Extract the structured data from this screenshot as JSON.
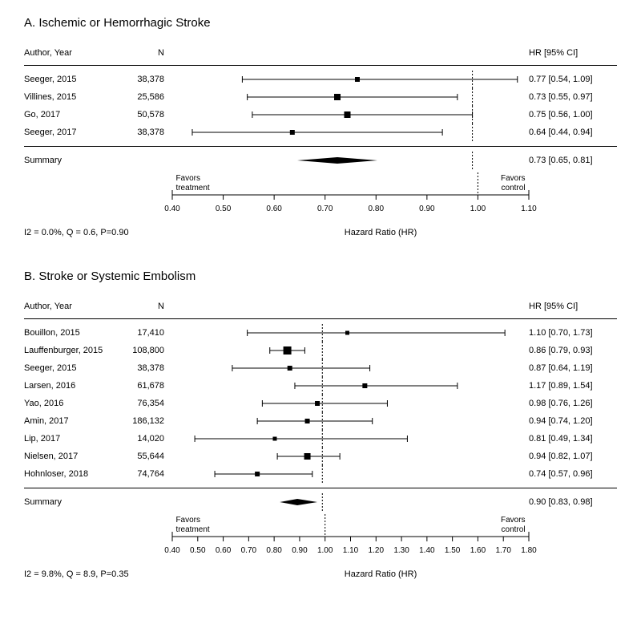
{
  "panels": [
    {
      "title": "A. Ischemic or Hemorrhagic Stroke",
      "header_author": "Author, Year",
      "header_n": "N",
      "header_hr": "HR [95% CI]",
      "axis_min": 0.4,
      "axis_max": 1.1,
      "ref_line": 1.0,
      "ticks": [
        0.4,
        0.5,
        0.6,
        0.7,
        0.8,
        0.9,
        1.0,
        1.1
      ],
      "favors_treatment": "Favors\ntreatment",
      "favors_control": "Favors\ncontrol",
      "axis_label": "Hazard Ratio (HR)",
      "het": "I2 = 0.0%, Q = 0.6, P=0.90",
      "studies": [
        {
          "author": "Seeger, 2015",
          "n": "38,378",
          "hr": 0.77,
          "lo": 0.54,
          "hi": 1.09,
          "hr_text": "0.77 [0.54, 1.09]",
          "weight": 6
        },
        {
          "author": "Villines, 2015",
          "n": "25,586",
          "hr": 0.73,
          "lo": 0.55,
          "hi": 0.97,
          "hr_text": "0.73 [0.55, 0.97]",
          "weight": 8
        },
        {
          "author": "Go, 2017",
          "n": "50,578",
          "hr": 0.75,
          "lo": 0.56,
          "hi": 1.0,
          "hr_text": "0.75 [0.56, 1.00]",
          "weight": 8
        },
        {
          "author": "Seeger, 2017",
          "n": "38,378",
          "hr": 0.64,
          "lo": 0.44,
          "hi": 0.94,
          "hr_text": "0.64 [0.44, 0.94]",
          "weight": 6
        }
      ],
      "summary": {
        "label": "Summary",
        "hr": 0.73,
        "lo": 0.65,
        "hi": 0.81,
        "hr_text": "0.73 [0.65, 0.81]"
      }
    },
    {
      "title": "B. Stroke or Systemic Embolism",
      "header_author": "Author, Year",
      "header_n": "N",
      "header_hr": "HR [95% CI]",
      "axis_min": 0.4,
      "axis_max": 1.8,
      "ref_line": 1.0,
      "ticks": [
        0.4,
        0.5,
        0.6,
        0.7,
        0.8,
        0.9,
        1.0,
        1.1,
        1.2,
        1.3,
        1.4,
        1.5,
        1.6,
        1.7,
        1.8
      ],
      "favors_treatment": "Favors\ntreatment",
      "favors_control": "Favors\ncontrol",
      "axis_label": "Hazard Ratio (HR)",
      "het": "I2 = 9.8%, Q = 8.9, P=0.35",
      "studies": [
        {
          "author": "Bouillon, 2015",
          "n": "17,410",
          "hr": 1.1,
          "lo": 0.7,
          "hi": 1.73,
          "hr_text": "1.10 [0.70, 1.73]",
          "weight": 5
        },
        {
          "author": "Lauffenburger, 2015",
          "n": "108,800",
          "hr": 0.86,
          "lo": 0.79,
          "hi": 0.93,
          "hr_text": "0.86 [0.79, 0.93]",
          "weight": 10
        },
        {
          "author": "Seeger, 2015",
          "n": "38,378",
          "hr": 0.87,
          "lo": 0.64,
          "hi": 1.19,
          "hr_text": "0.87 [0.64, 1.19]",
          "weight": 6
        },
        {
          "author": "Larsen, 2016",
          "n": "61,678",
          "hr": 1.17,
          "lo": 0.89,
          "hi": 1.54,
          "hr_text": "1.17 [0.89, 1.54]",
          "weight": 6
        },
        {
          "author": "Yao, 2016",
          "n": "76,354",
          "hr": 0.98,
          "lo": 0.76,
          "hi": 1.26,
          "hr_text": "0.98 [0.76, 1.26]",
          "weight": 6
        },
        {
          "author": "Amin, 2017",
          "n": "186,132",
          "hr": 0.94,
          "lo": 0.74,
          "hi": 1.2,
          "hr_text": "0.94 [0.74, 1.20]",
          "weight": 6
        },
        {
          "author": "Lip, 2017",
          "n": "14,020",
          "hr": 0.81,
          "lo": 0.49,
          "hi": 1.34,
          "hr_text": "0.81 [0.49, 1.34]",
          "weight": 5
        },
        {
          "author": "Nielsen, 2017",
          "n": "55,644",
          "hr": 0.94,
          "lo": 0.82,
          "hi": 1.07,
          "hr_text": "0.94 [0.82, 1.07]",
          "weight": 8
        },
        {
          "author": "Hohnloser, 2018",
          "n": "74,764",
          "hr": 0.74,
          "lo": 0.57,
          "hi": 0.96,
          "hr_text": "0.74 [0.57, 0.96]",
          "weight": 6
        }
      ],
      "summary": {
        "label": "Summary",
        "hr": 0.9,
        "lo": 0.83,
        "hi": 0.98,
        "hr_text": "0.90 [0.83, 0.98]"
      }
    }
  ],
  "colors": {
    "line": "#000000",
    "marker": "#000000",
    "ref_dash": "#000000",
    "bg": "#ffffff"
  }
}
